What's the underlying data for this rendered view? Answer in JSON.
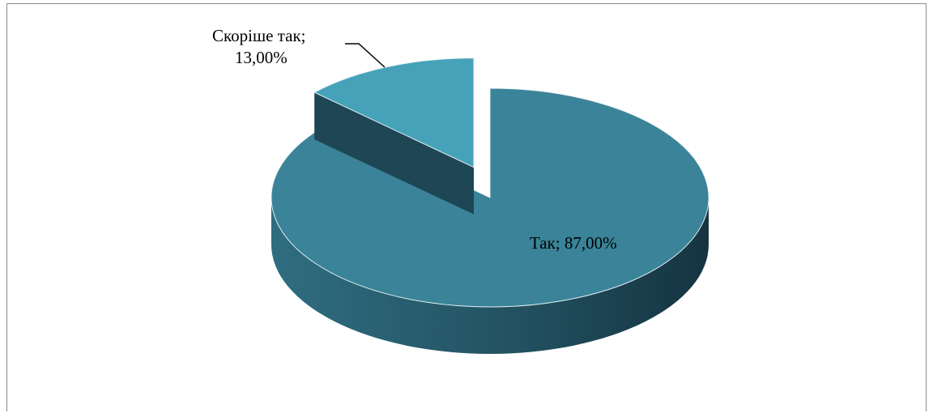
{
  "chart_data": {
    "type": "pie",
    "three_d": true,
    "exploded": true,
    "title": "",
    "legend": "none",
    "slices": [
      {
        "label": "Так",
        "value": 87.0,
        "data_label": "Так; 87,00%",
        "color": "#3a8398",
        "side_color": "#2a6273"
      },
      {
        "label": "Скоріше так",
        "value": 13.0,
        "data_label_line1": "Скоріше так;",
        "data_label_line2": "13,00%",
        "color": "#45a2b9",
        "side_color": "#1f4756"
      }
    ]
  }
}
